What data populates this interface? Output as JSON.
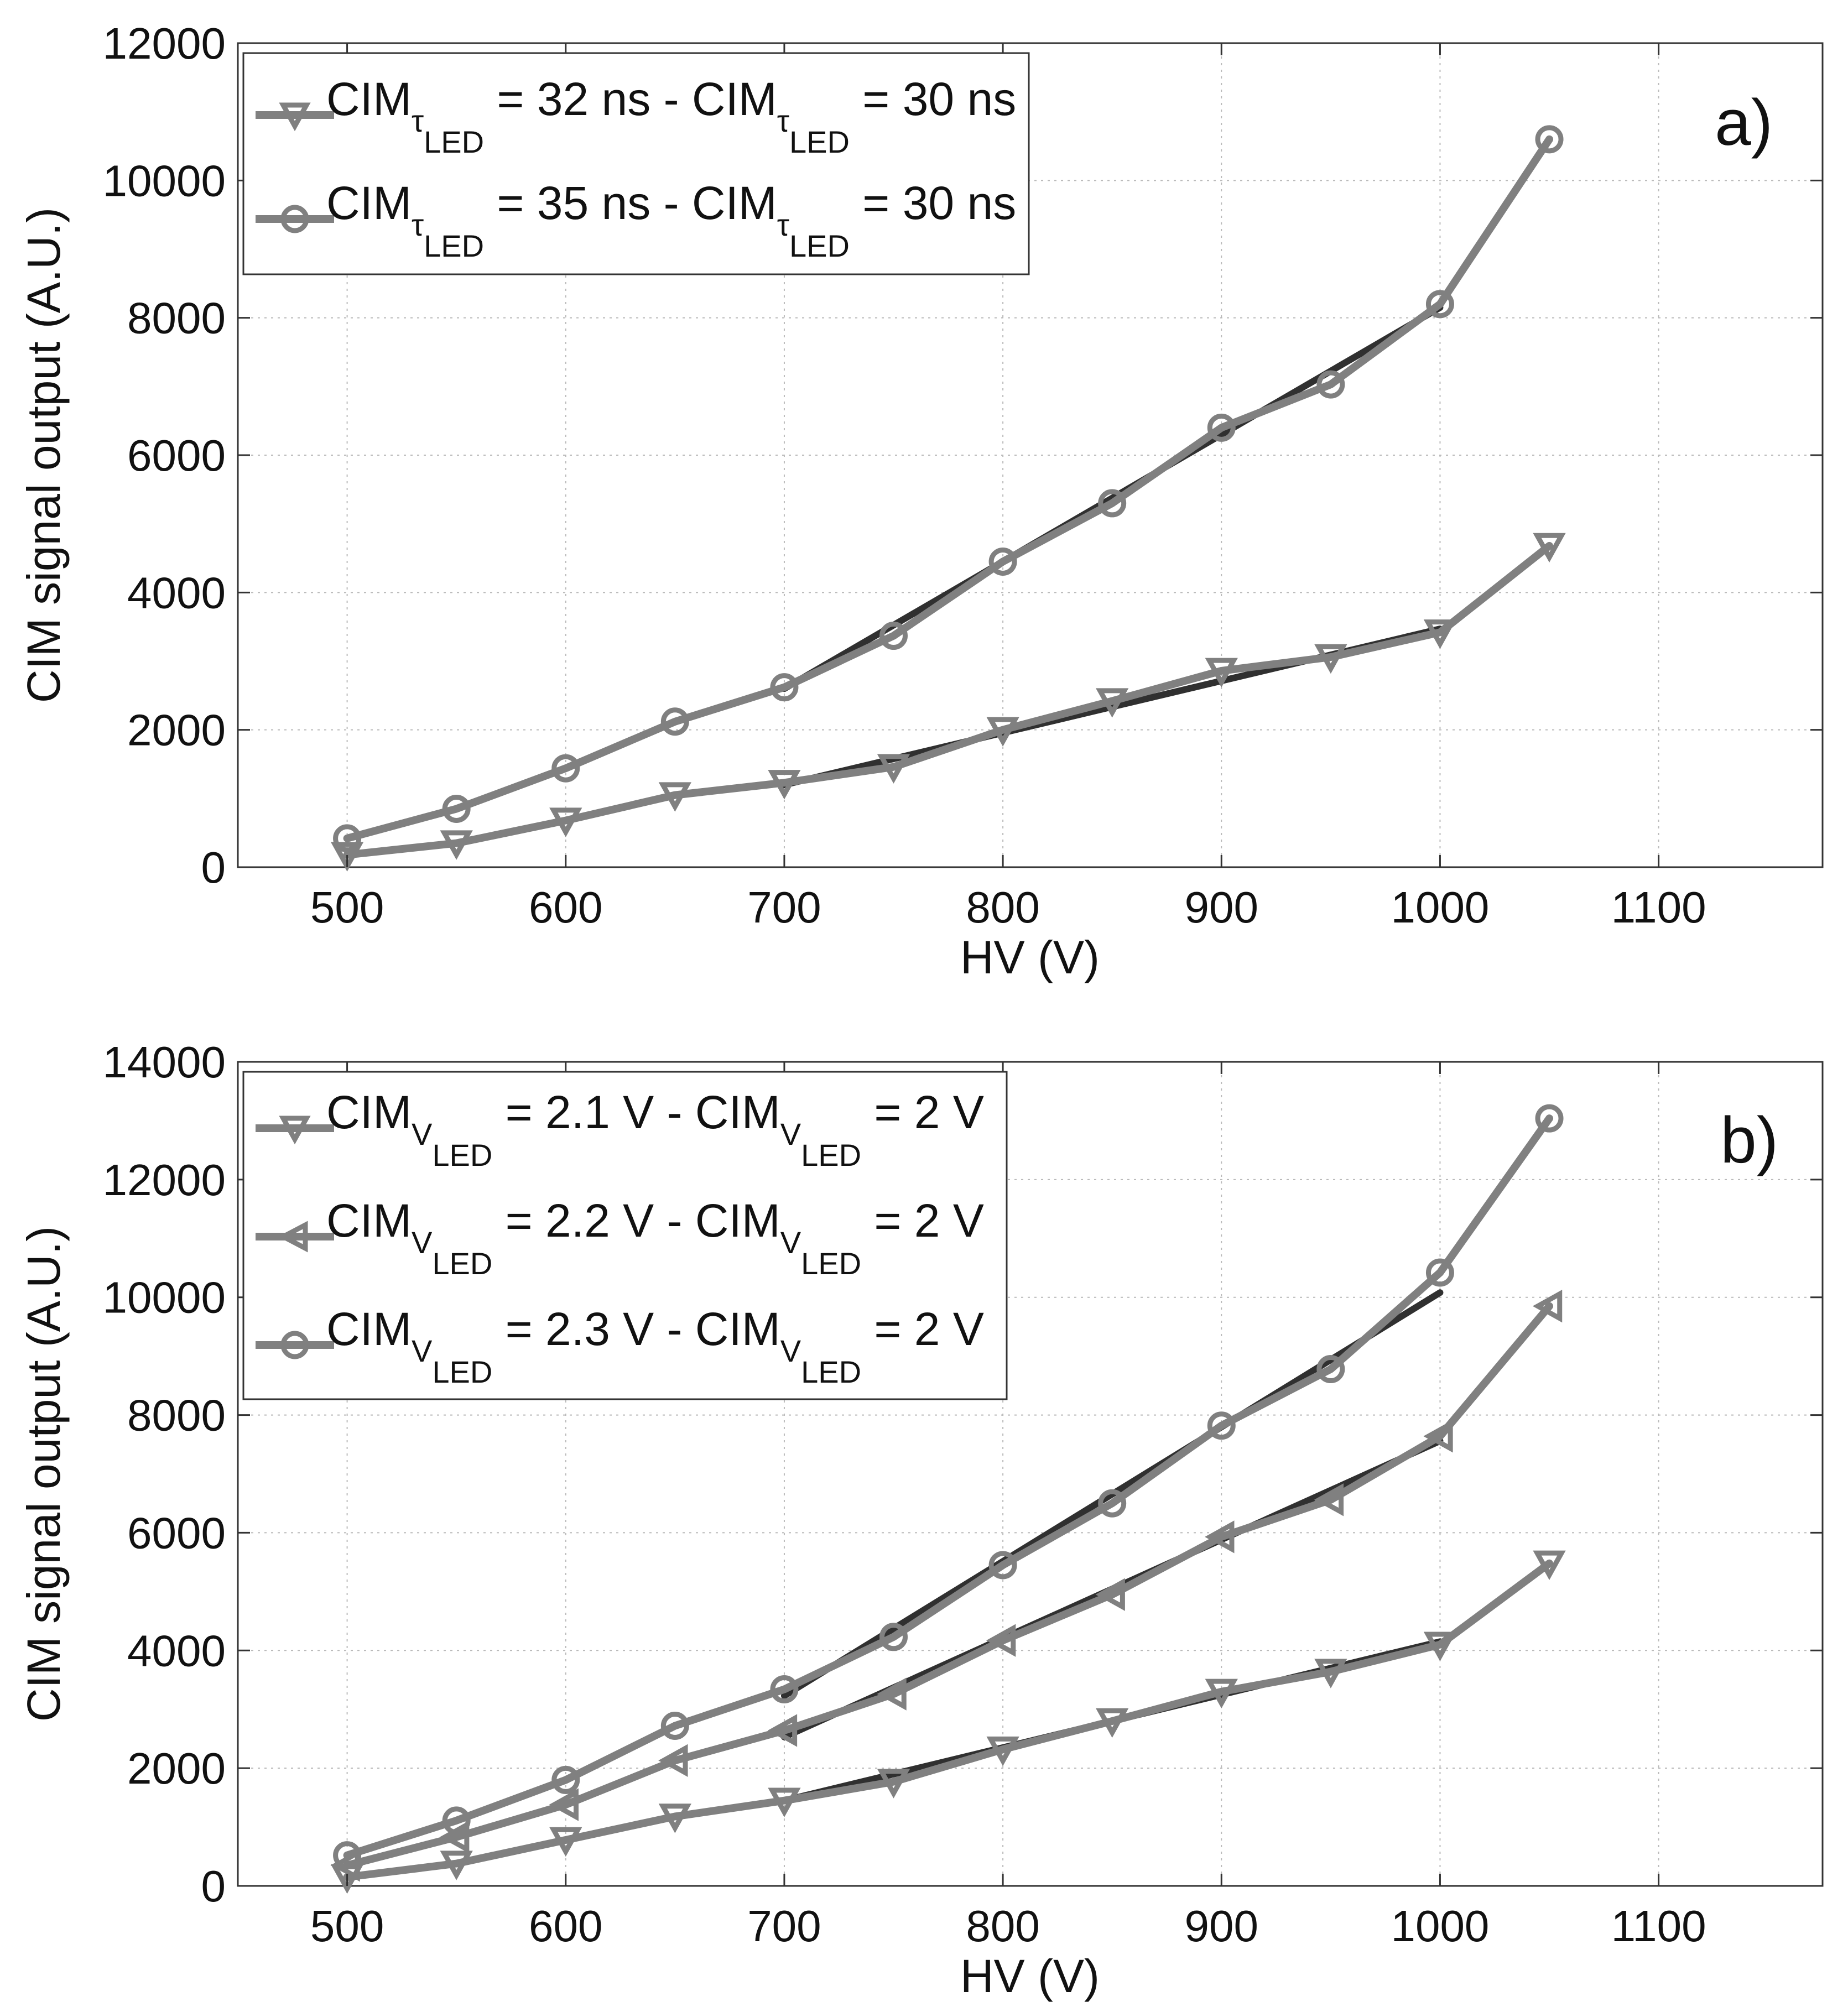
{
  "figure": {
    "panels": [
      "a)",
      "b)"
    ]
  },
  "colors": {
    "series": "#808080",
    "fit": "#303030",
    "grid": "#b9b9b9",
    "frame": "#333333"
  },
  "chart_data": [
    {
      "type": "line",
      "panel_label": "a)",
      "xlabel": "HV (V)",
      "ylabel": "CIM signal output (A.U.)",
      "xlim": [
        450,
        1175
      ],
      "ylim": [
        0,
        12000
      ],
      "xticks": [
        500,
        600,
        700,
        800,
        900,
        1000,
        1100
      ],
      "yticks": [
        0,
        2000,
        4000,
        6000,
        8000,
        10000,
        12000
      ],
      "grid": true,
      "legend_position": "top-left",
      "legend": [
        {
          "marker": "triangle-down",
          "main1": "CIM",
          "sub1": "τ",
          "subsub1": "LED",
          "mid": " = 32 ns - ",
          "main2": "CIM",
          "sub2": "τ",
          "subsub2": "LED",
          "end": " = 30 ns"
        },
        {
          "marker": "circle",
          "main1": "CIM",
          "sub1": "τ",
          "subsub1": "LED",
          "mid": " = 35 ns - ",
          "main2": "CIM",
          "sub2": "τ",
          "subsub2": "LED",
          "end": " = 30 ns"
        }
      ],
      "series": [
        {
          "name": "CIM(τLED = 32 ns) - CIM(τLED = 30 ns)",
          "marker": "triangle-down",
          "x": [
            500,
            550,
            600,
            650,
            700,
            750,
            800,
            850,
            900,
            950,
            1000,
            1050
          ],
          "y": [
            180,
            350,
            680,
            1050,
            1230,
            1460,
            2000,
            2420,
            2860,
            3060,
            3420,
            4680
          ],
          "fit": {
            "x": [
              700,
              1000
            ],
            "y": [
              1200,
              3470
            ]
          }
        },
        {
          "name": "CIM(τLED = 35 ns) - CIM(τLED = 30 ns)",
          "marker": "circle",
          "x": [
            500,
            550,
            600,
            650,
            700,
            750,
            800,
            850,
            900,
            950,
            1000,
            1050
          ],
          "y": [
            420,
            850,
            1440,
            2120,
            2620,
            3370,
            4450,
            5300,
            6400,
            7030,
            8200,
            10600
          ],
          "fit": {
            "x": [
              700,
              1000
            ],
            "y": [
              2600,
              8150
            ]
          }
        }
      ]
    },
    {
      "type": "line",
      "panel_label": "b)",
      "xlabel": "HV (V)",
      "ylabel": "CIM signal output (A.U.)",
      "xlim": [
        450,
        1175
      ],
      "ylim": [
        0,
        14000
      ],
      "xticks": [
        500,
        600,
        700,
        800,
        900,
        1000,
        1100
      ],
      "yticks": [
        0,
        2000,
        4000,
        6000,
        8000,
        10000,
        12000,
        14000
      ],
      "grid": true,
      "legend_position": "top-left",
      "legend": [
        {
          "marker": "triangle-down",
          "main1": "CIM",
          "sub1": "V",
          "subsub1": "LED",
          "mid": " = 2.1 V - ",
          "main2": "CIM",
          "sub2": "V",
          "subsub2": "LED",
          "end": " = 2 V"
        },
        {
          "marker": "triangle-left",
          "main1": "CIM",
          "sub1": "V",
          "subsub1": "LED",
          "mid": " = 2.2 V - ",
          "main2": "CIM",
          "sub2": "V",
          "subsub2": "LED",
          "end": " = 2 V"
        },
        {
          "marker": "circle",
          "main1": "CIM",
          "sub1": "V",
          "subsub1": "LED",
          "mid": " = 2.3 V - ",
          "main2": "CIM",
          "sub2": "V",
          "subsub2": "LED",
          "end": " = 2 V"
        }
      ],
      "series": [
        {
          "name": "CIM(VLED = 2.1 V) - CIM(VLED = 2 V)",
          "marker": "triangle-down",
          "x": [
            500,
            550,
            600,
            650,
            700,
            750,
            800,
            850,
            900,
            950,
            1000,
            1050
          ],
          "y": [
            150,
            380,
            780,
            1180,
            1450,
            1770,
            2320,
            2800,
            3300,
            3640,
            4100,
            5480
          ],
          "fit": {
            "x": [
              700,
              1000
            ],
            "y": [
              1450,
              4150
            ]
          }
        },
        {
          "name": "CIM(VLED = 2.2 V) - CIM(VLED = 2 V)",
          "marker": "triangle-left",
          "x": [
            500,
            550,
            600,
            650,
            700,
            750,
            800,
            850,
            900,
            950,
            1000,
            1050
          ],
          "y": [
            350,
            830,
            1380,
            2130,
            2640,
            3260,
            4170,
            4950,
            5930,
            6560,
            7640,
            9850
          ],
          "fit": {
            "x": [
              700,
              1000
            ],
            "y": [
              2530,
              7560
            ]
          }
        },
        {
          "name": "CIM(VLED = 2.3 V) - CIM(VLED = 2 V)",
          "marker": "circle",
          "x": [
            500,
            550,
            600,
            650,
            700,
            750,
            800,
            850,
            900,
            950,
            1000,
            1050
          ],
          "y": [
            520,
            1110,
            1800,
            2720,
            3340,
            4230,
            5450,
            6500,
            7820,
            8780,
            10420,
            13040
          ],
          "fit": {
            "x": [
              700,
              1000
            ],
            "y": [
              3230,
              10080
            ]
          }
        }
      ]
    }
  ]
}
